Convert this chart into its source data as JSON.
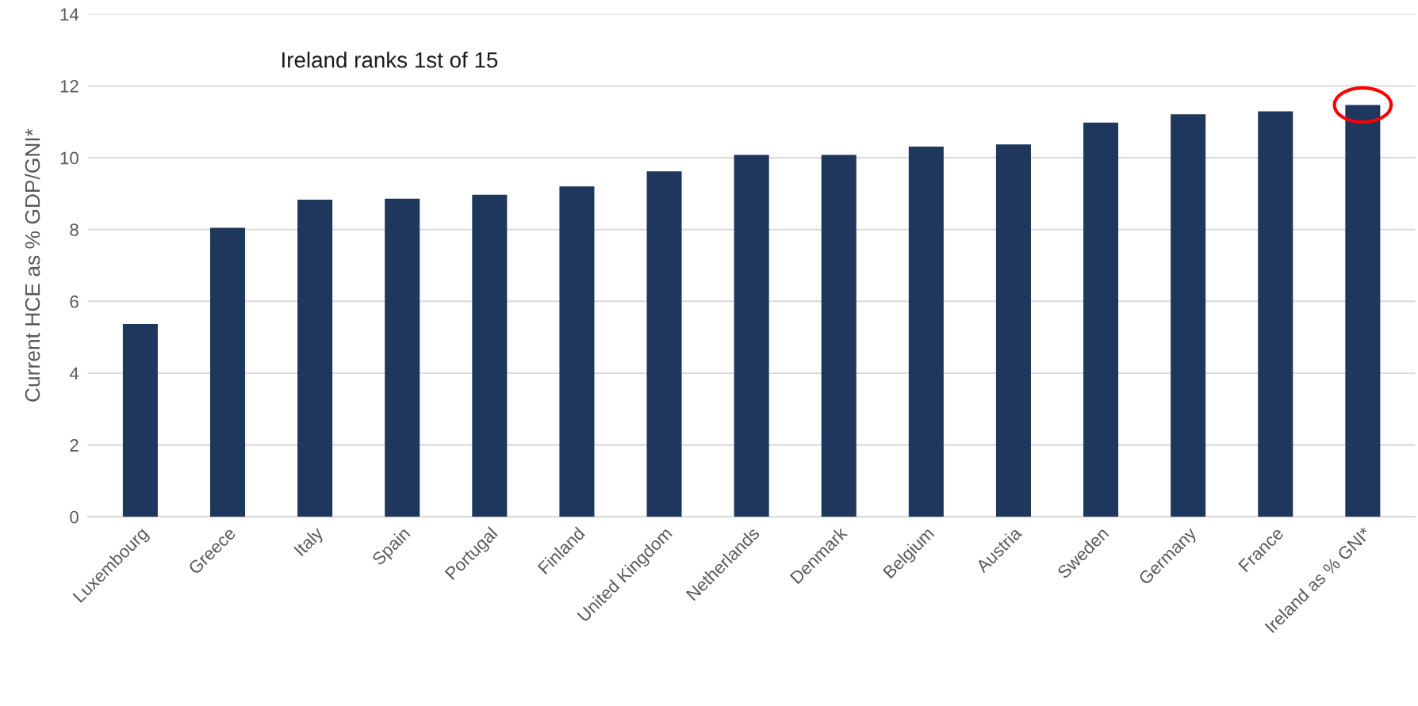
{
  "chart_data": {
    "type": "bar",
    "categories": [
      "Luxembourg",
      "Greece",
      "Italy",
      "Spain",
      "Portugal",
      "Finland",
      "United Kingdom",
      "Netherlands",
      "Denmark",
      "Belgium",
      "Austria",
      "Sweden",
      "Germany",
      "France",
      "Ireland as % GNI*"
    ],
    "values": [
      5.37,
      8.05,
      8.83,
      8.86,
      8.97,
      9.2,
      9.62,
      10.08,
      10.08,
      10.31,
      10.37,
      10.98,
      11.21,
      11.29,
      11.47
    ],
    "color": "#1f375c",
    "ylabel": "Current HCE as % GDP/GNI*",
    "annotations": [
      "Ireland ranks 1st of 15"
    ],
    "ylim": [
      0,
      14
    ],
    "yticks": [
      0,
      2,
      4,
      6,
      8,
      10,
      12,
      14
    ],
    "grid": "y"
  }
}
